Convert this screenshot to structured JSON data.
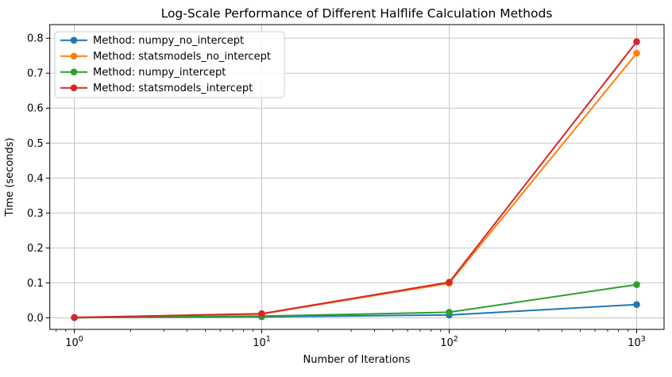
{
  "chart_data": {
    "type": "line",
    "title": "Log-Scale Performance of Different Halflife Calculation Methods",
    "xlabel": "Number of Iterations",
    "ylabel": "Time (seconds)",
    "xscale": "log",
    "grid": true,
    "legend_position": "upper left",
    "x": [
      1,
      10,
      100,
      1000
    ],
    "series": [
      {
        "name": "Method: numpy_no_intercept",
        "color": "#1f77b4",
        "values": [
          0.0005,
          0.003,
          0.008,
          0.038
        ]
      },
      {
        "name": "Method: statsmodels_no_intercept",
        "color": "#ff7f0e",
        "values": [
          0.001,
          0.011,
          0.099,
          0.757
        ]
      },
      {
        "name": "Method: numpy_intercept",
        "color": "#2ca02c",
        "values": [
          0.0005,
          0.005,
          0.016,
          0.095
        ]
      },
      {
        "name": "Method: statsmodels_intercept",
        "color": "#d62728",
        "values": [
          0.001,
          0.012,
          0.102,
          0.79
        ]
      }
    ],
    "xlim": [
      0.74,
      1400
    ],
    "ylim": [
      -0.033,
      0.839
    ],
    "x_tick_exponents": [
      0,
      1,
      2,
      3
    ],
    "x_tick_base": "10",
    "y_ticks": [
      0.0,
      0.1,
      0.2,
      0.3,
      0.4,
      0.5,
      0.6,
      0.7,
      0.8
    ],
    "colors": {
      "grid": "#c6c6c6",
      "spine": "#000000",
      "legend_border": "#cccccc",
      "legend_background": "rgba(255,255,255,0.85)"
    }
  }
}
